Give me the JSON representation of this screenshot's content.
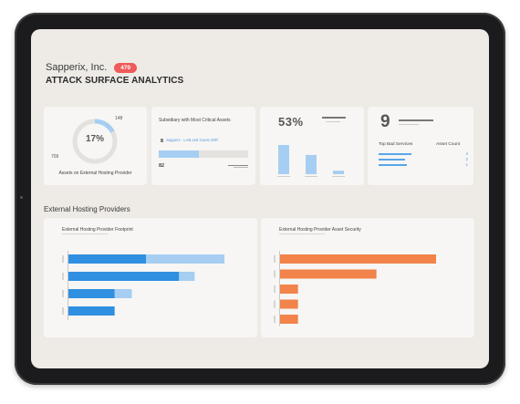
{
  "header": {
    "company": "Sapperix, Inc.",
    "badge": "470",
    "title": "ATTACK SURFACE ANALYTICS"
  },
  "kpi_hosting": {
    "percent": "17%",
    "top_value": "148",
    "left_value": "709",
    "label": "Assets on External Hosting Provider",
    "fraction": 0.17
  },
  "kpi_subsidiary": {
    "title": "Subsidiary with Most Critical Assets",
    "item": "Sapperx - LAB and Guest WiFi",
    "value": "82",
    "fill_fraction": 0.45
  },
  "kpi_percent": {
    "value": "53%",
    "bars": [
      1.0,
      0.66,
      0.12
    ]
  },
  "kpi_services": {
    "value": "9",
    "col1": "Top Bad Services",
    "col2": "Asset Count",
    "rows": [
      {
        "value": "4",
        "fraction": 0.7
      },
      {
        "value": "2",
        "fraction": 0.55
      },
      {
        "value": "1",
        "fraction": 0.6
      }
    ]
  },
  "section": {
    "title": "External Hosting Providers"
  },
  "footprint": {
    "title": "External Hosting Provider Footprint",
    "rows": [
      {
        "dark": 0.5,
        "total": 1.0
      },
      {
        "dark": 0.71,
        "total": 0.81
      },
      {
        "dark": 0.3,
        "total": 0.41
      },
      {
        "dark": 0.3,
        "total": 0.3
      }
    ]
  },
  "security": {
    "title": "External Hosting Provider Asset Security",
    "rows": [
      1.0,
      0.62,
      0.12,
      0.12,
      0.12
    ]
  },
  "colors": {
    "blue_dark": "#2f8fe0",
    "blue_light": "#a6cef2",
    "orange": "#f2834a",
    "red_badge": "#ef5a5a"
  }
}
